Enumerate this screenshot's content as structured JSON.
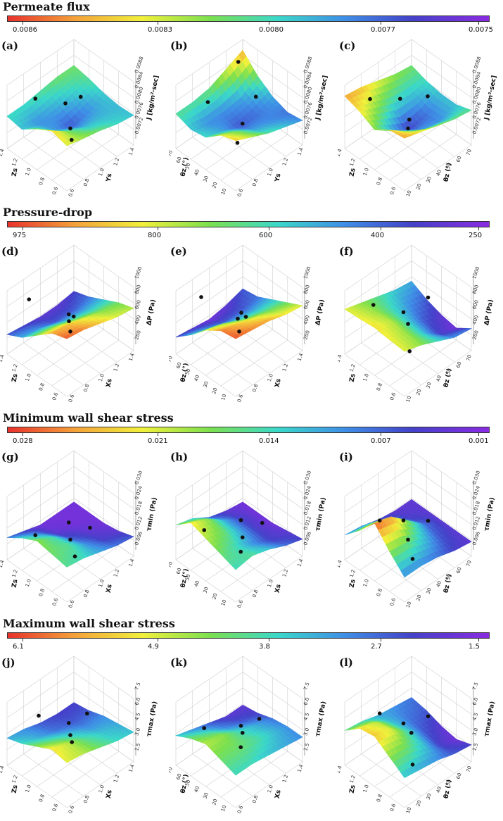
{
  "chart_data": [
    {
      "type": "surface",
      "title": "Permeate flux",
      "colorbar": {
        "ticks": [
          "0.0086",
          "0.0083",
          "0.0080",
          "0.0077",
          "0.0075"
        ]
      },
      "zaxis": {
        "label": "J [kg/m²·sec]",
        "ticks": [
          "0.0088",
          "0.0084",
          "0.0080",
          "0.0076",
          "0.0072"
        ]
      },
      "panels": [
        {
          "label": "(a)",
          "xlabel": "Zs",
          "xticks": [
            "1.4",
            "1.2",
            "1.0",
            "0.8",
            "0.6"
          ],
          "ylabel": "Ys",
          "yticks": [
            "0.6",
            "0.8",
            "1.0",
            "1.2",
            "1.4"
          ],
          "surface": [
            [
              0.7,
              0.78,
              0.62,
              0.4,
              0.45
            ],
            [
              0.62,
              0.55,
              0.35,
              0.3,
              0.45
            ],
            [
              0.55,
              0.4,
              0.2,
              0.35,
              0.5
            ],
            [
              0.45,
              0.38,
              0.3,
              0.42,
              0.55
            ],
            [
              0.4,
              0.38,
              0.42,
              0.5,
              0.55
            ]
          ],
          "points": [
            [
              0.75,
              0.2,
              0.8
            ],
            [
              0.55,
              0.7,
              0.55
            ],
            [
              0.2,
              0.25,
              0.4
            ],
            [
              0.5,
              0.5,
              0.15
            ],
            [
              0.75,
              0.65,
              0.3
            ]
          ]
        },
        {
          "label": "(b)",
          "xlabel": "θz (°)",
          "xticks": [
            "70",
            "60",
            "50",
            "40",
            "30",
            "20",
            "10"
          ],
          "ylabel": "Ys",
          "yticks": [
            "0.6",
            "0.8",
            "1.0",
            "1.2",
            "1.4"
          ],
          "surface": [
            [
              0.8,
              0.7,
              0.45,
              0.4,
              0.5
            ],
            [
              0.65,
              0.55,
              0.35,
              0.3,
              0.5
            ],
            [
              0.5,
              0.35,
              0.2,
              0.3,
              0.55
            ],
            [
              0.4,
              0.3,
              0.25,
              0.35,
              0.7
            ],
            [
              0.3,
              0.25,
              0.35,
              0.55,
              0.85
            ]
          ],
          "points": [
            [
              0.8,
              0.3,
              0.6
            ],
            [
              0.5,
              0.75,
              0.55
            ],
            [
              0.25,
              0.25,
              0.3
            ],
            [
              0.5,
              0.55,
              0.2
            ],
            [
              0.85,
              0.8,
              0.9
            ]
          ]
        },
        {
          "label": "(c)",
          "xlabel": "Zs",
          "xticks": [
            "1.4",
            "1.2",
            "1.0",
            "0.8",
            "0.6"
          ],
          "ylabel": "θz (°)",
          "yticks": [
            "10",
            "20",
            "30",
            "40",
            "50",
            "60",
            "70"
          ],
          "surface": [
            [
              0.85,
              0.8,
              0.6,
              0.75,
              0.85
            ],
            [
              0.75,
              0.55,
              0.35,
              0.6,
              0.8
            ],
            [
              0.65,
              0.35,
              0.15,
              0.45,
              0.7
            ],
            [
              0.55,
              0.3,
              0.25,
              0.4,
              0.6
            ],
            [
              0.5,
              0.4,
              0.4,
              0.45,
              0.55
            ]
          ],
          "points": [
            [
              0.8,
              0.2,
              0.75
            ],
            [
              0.45,
              0.75,
              0.6
            ],
            [
              0.2,
              0.25,
              0.8
            ],
            [
              0.5,
              0.5,
              0.15
            ],
            [
              0.8,
              0.65,
              0.35
            ]
          ]
        }
      ]
    },
    {
      "type": "surface",
      "title": "Pressure-drop",
      "colorbar": {
        "ticks": [
          "975",
          "800",
          "600",
          "400",
          "250"
        ]
      },
      "zaxis": {
        "label": "ΔP (Pa)",
        "ticks": [
          "1000",
          "800",
          "600",
          "400",
          "200"
        ]
      },
      "panels": [
        {
          "label": "(d)",
          "xlabel": "Zs",
          "xticks": [
            "1.4",
            "1.2",
            "1.0",
            "0.8",
            "0.6"
          ],
          "ylabel": "Xs",
          "yticks": [
            "0.6",
            "0.8",
            "1.0",
            "1.2",
            "1.4"
          ],
          "surface": [
            [
              0.95,
              0.85,
              0.6,
              0.35,
              0.2
            ],
            [
              0.9,
              0.8,
              0.55,
              0.3,
              0.15
            ],
            [
              0.8,
              0.7,
              0.45,
              0.2,
              0.1
            ],
            [
              0.7,
              0.6,
              0.4,
              0.2,
              0.1
            ],
            [
              0.65,
              0.55,
              0.4,
              0.25,
              0.15
            ]
          ],
          "points": [
            [
              0.8,
              0.15,
              0.9
            ],
            [
              0.5,
              0.55,
              0.45
            ],
            [
              0.3,
              0.3,
              0.75
            ],
            [
              0.5,
              0.5,
              0.2
            ],
            [
              0.75,
              0.7,
              0.15
            ]
          ]
        },
        {
          "label": "(e)",
          "xlabel": "θz (°)",
          "xticks": [
            "70",
            "60",
            "50",
            "40",
            "30",
            "20",
            "10"
          ],
          "ylabel": "Xs",
          "yticks": [
            "0.6",
            "0.8",
            "1.0",
            "1.2",
            "1.4"
          ],
          "surface": [
            [
              0.95,
              0.9,
              0.7,
              0.4,
              0.15
            ],
            [
              0.9,
              0.8,
              0.6,
              0.3,
              0.1
            ],
            [
              0.85,
              0.7,
              0.45,
              0.2,
              0.05
            ],
            [
              0.75,
              0.6,
              0.4,
              0.2,
              0.1
            ],
            [
              0.7,
              0.55,
              0.4,
              0.25,
              0.2
            ]
          ],
          "points": [
            [
              0.8,
              0.2,
              0.9
            ],
            [
              0.5,
              0.6,
              0.4
            ],
            [
              0.3,
              0.3,
              0.8
            ],
            [
              0.5,
              0.5,
              0.2
            ],
            [
              0.8,
              0.8,
              0.05
            ]
          ]
        },
        {
          "label": "(f)",
          "xlabel": "Zs",
          "xticks": [
            "1.4",
            "1.2",
            "1.0",
            "0.8",
            "0.6"
          ],
          "ylabel": "θz (°)",
          "yticks": [
            "10",
            "20",
            "30",
            "40",
            "50",
            "60",
            "70"
          ],
          "surface": [
            [
              0.7,
              0.72,
              0.75,
              0.72,
              0.7
            ],
            [
              0.6,
              0.62,
              0.65,
              0.62,
              0.6
            ],
            [
              0.45,
              0.4,
              0.42,
              0.45,
              0.5
            ],
            [
              0.3,
              0.15,
              0.2,
              0.3,
              0.4
            ],
            [
              0.25,
              0.05,
              0.1,
              0.2,
              0.35
            ]
          ],
          "points": [
            [
              0.8,
              0.25,
              0.7
            ],
            [
              0.5,
              0.8,
              0.6
            ],
            [
              0.25,
              0.3,
              0.2
            ],
            [
              0.5,
              0.5,
              0.35
            ],
            [
              0.8,
              0.7,
              0.15
            ]
          ]
        }
      ]
    },
    {
      "type": "surface",
      "title": "Minimum wall shear stress",
      "colorbar": {
        "ticks": [
          "0.028",
          "0.021",
          "0.014",
          "0.007",
          "0.001"
        ]
      },
      "zaxis": {
        "label": "τmin (Pa)",
        "ticks": [
          "0.030",
          "0.024",
          "0.018",
          "0.012",
          "0.006"
        ]
      },
      "panels": [
        {
          "label": "(g)",
          "xlabel": "Zs",
          "xticks": [
            "1.4",
            "1.2",
            "1.0",
            "0.8",
            "0.6"
          ],
          "ylabel": "Xs",
          "yticks": [
            "0.6",
            "0.8",
            "1.0",
            "1.2",
            "1.4"
          ],
          "surface": [
            [
              0.5,
              0.55,
              0.6,
              0.45,
              0.25
            ],
            [
              0.45,
              0.5,
              0.45,
              0.3,
              0.15
            ],
            [
              0.35,
              0.3,
              0.2,
              0.1,
              0.05
            ],
            [
              0.25,
              0.15,
              0.1,
              0.05,
              0.05
            ],
            [
              0.2,
              0.1,
              0.05,
              0.05,
              0.05
            ]
          ],
          "points": [
            [
              0.75,
              0.2,
              0.3
            ],
            [
              0.45,
              0.75,
              0.2
            ],
            [
              0.2,
              0.3,
              0.25
            ],
            [
              0.5,
              0.5,
              0.15
            ],
            [
              0.75,
              0.7,
              0.1
            ]
          ]
        },
        {
          "label": "(h)",
          "xlabel": "θz (°)",
          "xticks": [
            "70",
            "60",
            "50",
            "40",
            "30",
            "20",
            "10"
          ],
          "ylabel": "Xs",
          "yticks": [
            "0.6",
            "0.8",
            "1.0",
            "1.2",
            "1.4"
          ],
          "surface": [
            [
              0.45,
              0.55,
              0.65,
              0.75,
              0.5
            ],
            [
              0.5,
              0.45,
              0.55,
              0.6,
              0.4
            ],
            [
              0.4,
              0.3,
              0.35,
              0.35,
              0.2
            ],
            [
              0.25,
              0.15,
              0.15,
              0.15,
              0.1
            ],
            [
              0.15,
              0.1,
              0.05,
              0.05,
              0.05
            ]
          ],
          "points": [
            [
              0.75,
              0.2,
              0.4
            ],
            [
              0.45,
              0.8,
              0.25
            ],
            [
              0.25,
              0.3,
              0.3
            ],
            [
              0.5,
              0.55,
              0.15
            ],
            [
              0.75,
              0.75,
              0.1
            ]
          ]
        },
        {
          "label": "(i)",
          "xlabel": "Zs",
          "xticks": [
            "1.4",
            "1.2",
            "1.0",
            "0.8",
            "0.6"
          ],
          "ylabel": "θz (°)",
          "yticks": [
            "10",
            "20",
            "30",
            "40",
            "50",
            "60",
            "70"
          ],
          "surface": [
            [
              0.3,
              0.6,
              0.95,
              0.6,
              0.3
            ],
            [
              0.3,
              0.55,
              0.85,
              0.55,
              0.25
            ],
            [
              0.25,
              0.4,
              0.55,
              0.35,
              0.15
            ],
            [
              0.15,
              0.2,
              0.25,
              0.15,
              0.1
            ],
            [
              0.1,
              0.1,
              0.1,
              0.1,
              0.1
            ]
          ],
          "points": [
            [
              0.75,
              0.3,
              0.5
            ],
            [
              0.5,
              0.8,
              0.25
            ],
            [
              0.2,
              0.3,
              0.2
            ],
            [
              0.5,
              0.5,
              0.15
            ],
            [
              0.8,
              0.7,
              0.1
            ]
          ]
        }
      ]
    },
    {
      "type": "surface",
      "title": "Maximum wall shear stress",
      "colorbar": {
        "ticks": [
          "6.1",
          "4.9",
          "3.8",
          "2.7",
          "1.5"
        ]
      },
      "zaxis": {
        "label": "τmax (Pa)",
        "ticks": [
          "7.5",
          "6.0",
          "4.5",
          "3.0",
          "1.5"
        ]
      },
      "panels": [
        {
          "label": "(j)",
          "xlabel": "Zs",
          "xticks": [
            "1.4",
            "1.2",
            "1.0",
            "0.8",
            "0.6"
          ],
          "ylabel": "Xs",
          "yticks": [
            "0.6",
            "0.8",
            "1.0",
            "1.2",
            "1.4"
          ],
          "surface": [
            [
              0.7,
              0.75,
              0.6,
              0.45,
              0.35
            ],
            [
              0.65,
              0.65,
              0.5,
              0.35,
              0.3
            ],
            [
              0.55,
              0.5,
              0.4,
              0.25,
              0.2
            ],
            [
              0.45,
              0.4,
              0.3,
              0.2,
              0.15
            ],
            [
              0.4,
              0.35,
              0.3,
              0.2,
              0.15
            ]
          ],
          "points": [
            [
              0.75,
              0.25,
              0.75
            ],
            [
              0.5,
              0.75,
              0.55
            ],
            [
              0.25,
              0.3,
              0.6
            ],
            [
              0.5,
              0.5,
              0.35
            ],
            [
              0.75,
              0.7,
              0.2
            ]
          ]
        },
        {
          "label": "(k)",
          "xlabel": "θz (°)",
          "xticks": [
            "70",
            "60",
            "50",
            "40",
            "30",
            "20",
            "10"
          ],
          "ylabel": "Xs",
          "yticks": [
            "0.6",
            "0.8",
            "1.0",
            "1.2",
            "1.4"
          ],
          "surface": [
            [
              0.45,
              0.55,
              0.65,
              0.55,
              0.4
            ],
            [
              0.45,
              0.55,
              0.6,
              0.45,
              0.3
            ],
            [
              0.4,
              0.5,
              0.45,
              0.3,
              0.2
            ],
            [
              0.35,
              0.4,
              0.35,
              0.2,
              0.1
            ],
            [
              0.3,
              0.3,
              0.25,
              0.15,
              0.1
            ]
          ],
          "points": [
            [
              0.75,
              0.2,
              0.55
            ],
            [
              0.5,
              0.8,
              0.4
            ],
            [
              0.25,
              0.3,
              0.5
            ],
            [
              0.5,
              0.55,
              0.35
            ],
            [
              0.75,
              0.75,
              0.1
            ]
          ]
        },
        {
          "label": "(l)",
          "xlabel": "Zs",
          "xticks": [
            "1.4",
            "1.2",
            "1.0",
            "0.8",
            "0.6"
          ],
          "ylabel": "θz (°)",
          "yticks": [
            "10",
            "20",
            "30",
            "40",
            "50",
            "60",
            "70"
          ],
          "surface": [
            [
              0.4,
              0.6,
              0.8,
              0.75,
              0.5
            ],
            [
              0.35,
              0.55,
              0.7,
              0.65,
              0.45
            ],
            [
              0.3,
              0.4,
              0.45,
              0.4,
              0.35
            ],
            [
              0.2,
              0.15,
              0.2,
              0.25,
              0.3
            ],
            [
              0.15,
              0.05,
              0.1,
              0.2,
              0.25
            ]
          ],
          "points": [
            [
              0.75,
              0.3,
              0.75
            ],
            [
              0.5,
              0.8,
              0.45
            ],
            [
              0.2,
              0.3,
              0.2
            ],
            [
              0.5,
              0.55,
              0.35
            ],
            [
              0.8,
              0.7,
              0.15
            ]
          ]
        }
      ]
    }
  ]
}
